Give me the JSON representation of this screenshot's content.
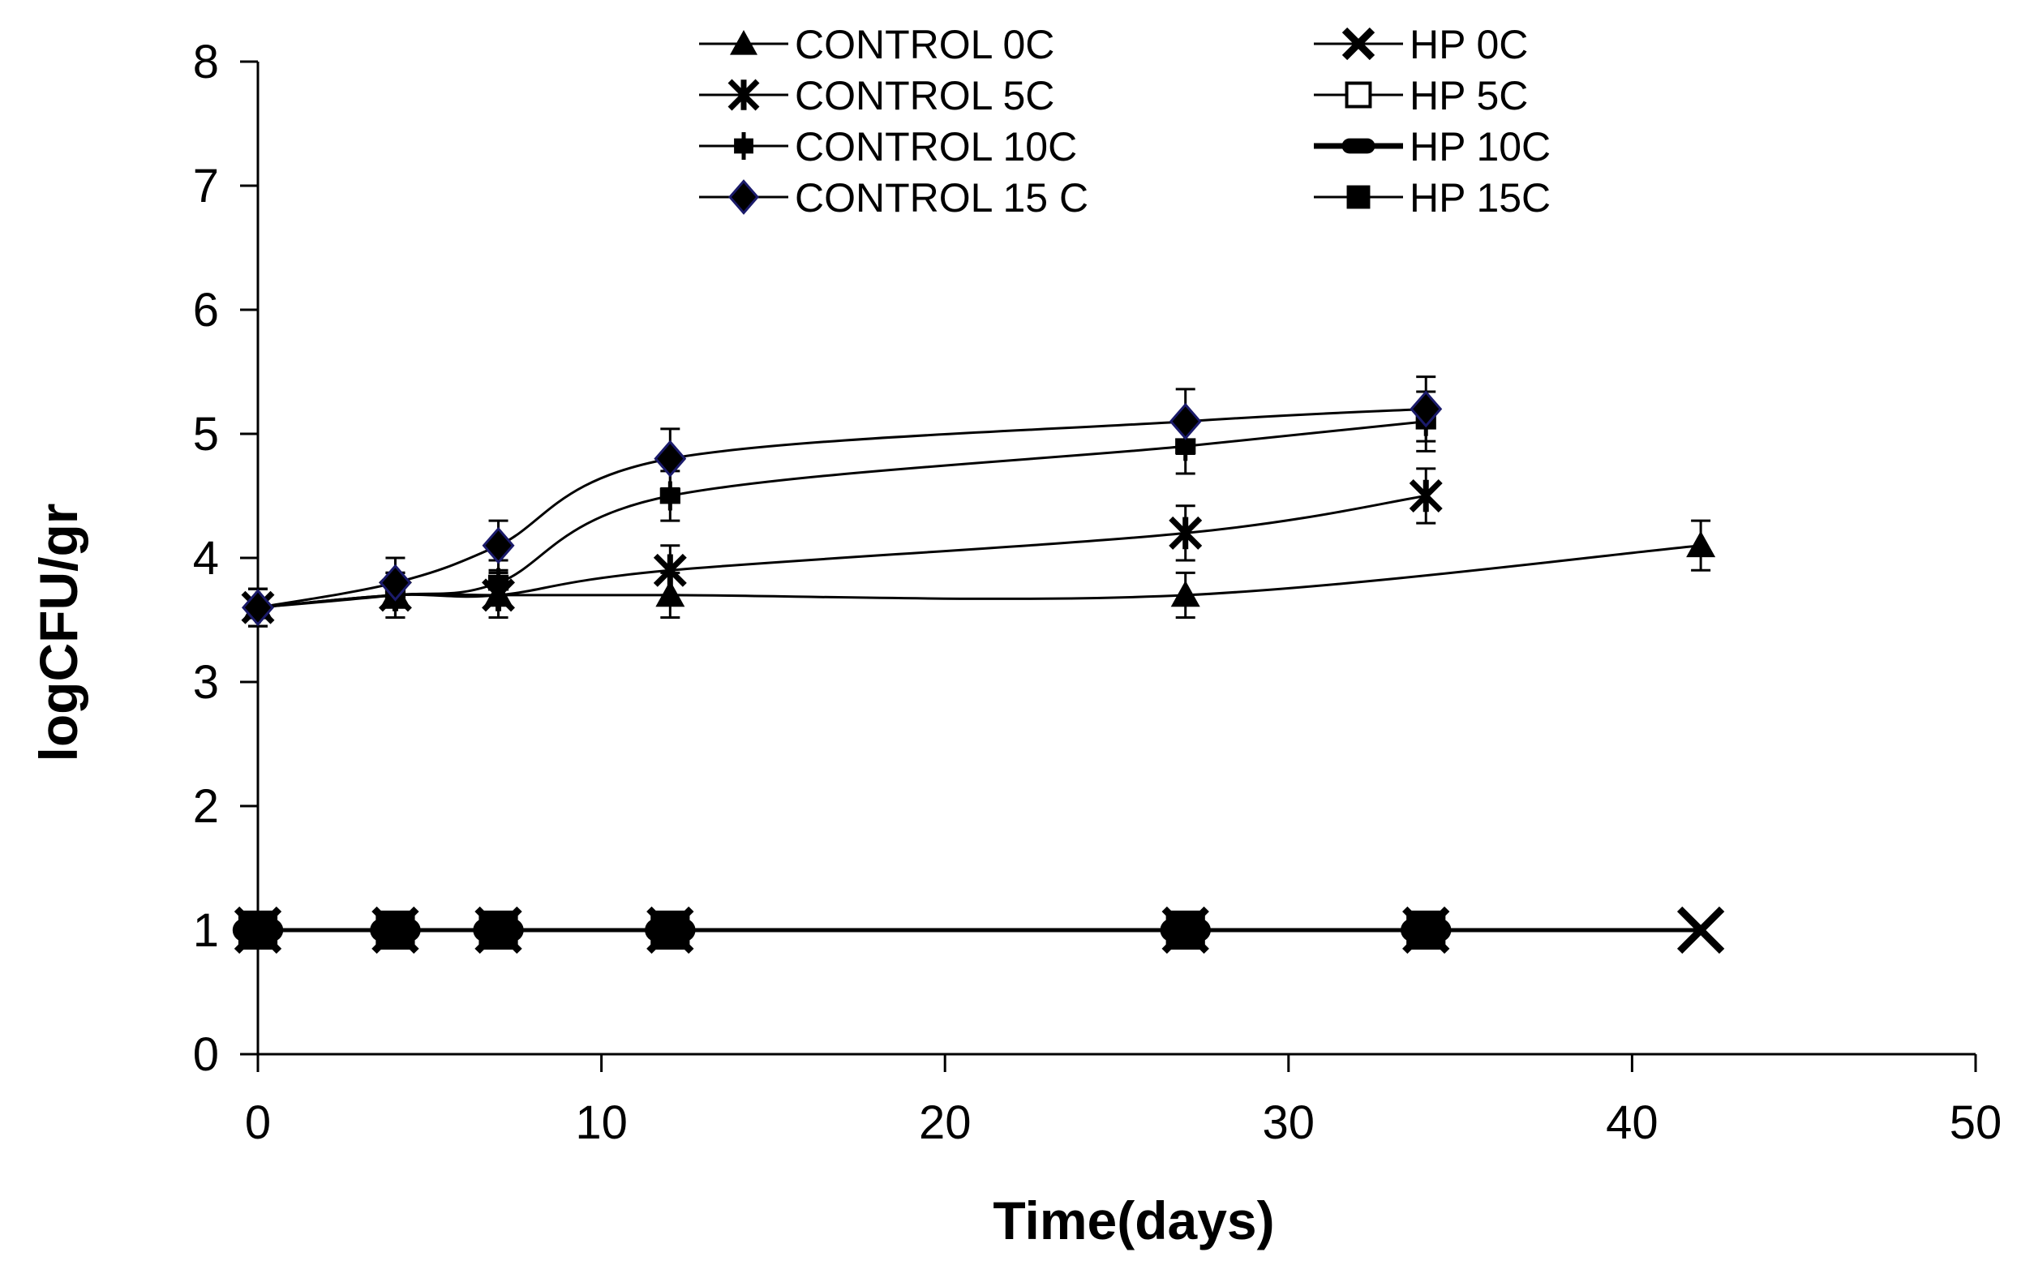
{
  "chart_data": {
    "type": "line",
    "title": "",
    "xlabel": "Time(days)",
    "ylabel": "logCFU/gr",
    "xlim": [
      0,
      50
    ],
    "ylim": [
      0,
      8
    ],
    "x_ticks": [
      0,
      10,
      20,
      30,
      40,
      50
    ],
    "y_ticks": [
      0,
      1,
      2,
      3,
      4,
      5,
      6,
      7,
      8
    ],
    "grid": false,
    "legend_position": "top",
    "series": [
      {
        "name": "CONTROL 0C",
        "marker": "triangle",
        "smooth": true,
        "x": [
          0,
          4,
          7,
          12,
          27,
          42
        ],
        "y": [
          3.6,
          3.7,
          3.7,
          3.7,
          3.7,
          4.1
        ],
        "error": [
          0.15,
          0.18,
          0.18,
          0.18,
          0.18,
          0.2
        ]
      },
      {
        "name": "CONTROL 5C",
        "marker": "star-x",
        "smooth": true,
        "x": [
          0,
          4,
          7,
          12,
          27,
          34
        ],
        "y": [
          3.6,
          3.7,
          3.7,
          3.9,
          4.2,
          4.5
        ],
        "error": [
          0.15,
          0.18,
          0.18,
          0.2,
          0.22,
          0.22
        ]
      },
      {
        "name": "CONTROL 10C",
        "marker": "cross-dash",
        "smooth": true,
        "x": [
          0,
          4,
          7,
          12,
          27,
          34
        ],
        "y": [
          3.6,
          3.7,
          3.8,
          4.5,
          4.9,
          5.1
        ],
        "error": [
          0.15,
          0.18,
          0.18,
          0.2,
          0.22,
          0.24
        ]
      },
      {
        "name": "CONTROL 15 C",
        "marker": "diamond",
        "smooth": true,
        "x": [
          0,
          4,
          7,
          12,
          27,
          34
        ],
        "y": [
          3.6,
          3.8,
          4.1,
          4.8,
          5.1,
          5.2
        ],
        "error": [
          0.15,
          0.2,
          0.2,
          0.24,
          0.26,
          0.26
        ]
      },
      {
        "name": "HP 0C",
        "marker": "x",
        "smooth": false,
        "x": [
          0,
          4,
          7,
          12,
          27,
          34,
          42
        ],
        "y": [
          1,
          1,
          1,
          1,
          1,
          1,
          1
        ],
        "error": []
      },
      {
        "name": "HP 5C",
        "marker": "open-square",
        "smooth": false,
        "x": [
          0,
          4,
          7,
          12,
          27,
          34
        ],
        "y": [
          1,
          1,
          1,
          1,
          1,
          1
        ],
        "error": []
      },
      {
        "name": "HP 10C",
        "marker": "pill",
        "smooth": false,
        "x": [
          0,
          4,
          7,
          12,
          27,
          34
        ],
        "y": [
          1,
          1,
          1,
          1,
          1,
          1
        ],
        "error": []
      },
      {
        "name": "HP 15C",
        "marker": "square",
        "smooth": false,
        "x": [
          0,
          4,
          7,
          12,
          27,
          34
        ],
        "y": [
          1,
          1,
          1,
          1,
          1,
          1
        ],
        "error": []
      }
    ]
  },
  "colors": {
    "line": "#000000",
    "marker_fill": "#000000",
    "diamond_edge": "#1b1b6b",
    "background": "#ffffff"
  }
}
